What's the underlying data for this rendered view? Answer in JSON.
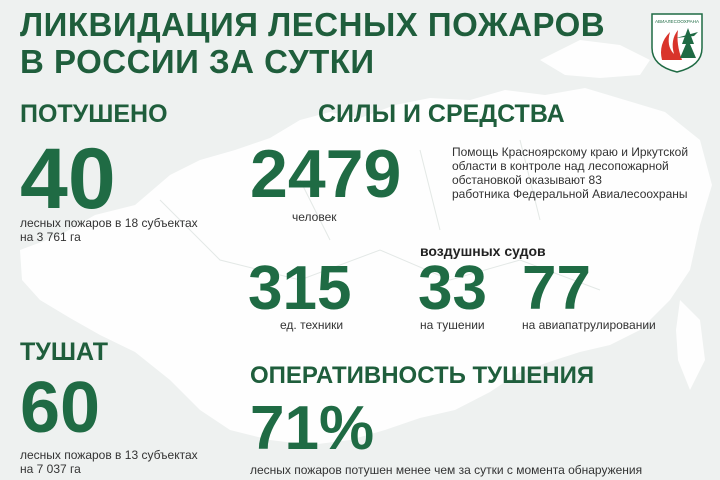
{
  "title": {
    "line1": "ЛИКВИДАЦИЯ ЛЕСНЫХ ПОЖАРОВ",
    "line2": "В РОССИИ ЗА СУТКИ"
  },
  "logo": {
    "icon": "avialesookhrana-emblem-icon",
    "text": "АВИАЛЕСООХРАНА"
  },
  "extinguished": {
    "header": "ПОТУШЕНО",
    "value": "40",
    "caption_line1": "лесных  пожаров в 18 субъектах",
    "caption_line2": "на 3 761 га"
  },
  "forces": {
    "header": "СИЛЫ И СРЕДСТВА",
    "people_value": "2479",
    "people_label": "человек",
    "note_line1": "Помощь Красноярскому краю и Иркутской",
    "note_line2": "области в контроле над лесопожарной",
    "note_line3": "обстановкой оказывают 83",
    "note_line4": "работника  Федеральной Авиалесоохраны",
    "equipment_value": "315",
    "equipment_label": "ед. техники",
    "aircraft_header": "воздушных судов",
    "aircraft_fighting_value": "33",
    "aircraft_fighting_label": "на тушении",
    "aircraft_patrol_value": "77",
    "aircraft_patrol_label": "на авиапатрулировании"
  },
  "burning": {
    "header": "ТУШАТ",
    "value": "60",
    "caption_line1": "лесных  пожаров в 13 субъектах",
    "caption_line2": "на 7 037 га"
  },
  "efficiency": {
    "header": "ОПЕРАТИВНОСТЬ ТУШЕНИЯ",
    "value": "71%",
    "caption": "лесных  пожаров потушен  менее чем за сутки  с момента обнаружения"
  },
  "colors": {
    "accent": "#1f6b44",
    "text": "#333333",
    "background": "#eef1f0",
    "logo_red": "#d9342b"
  }
}
